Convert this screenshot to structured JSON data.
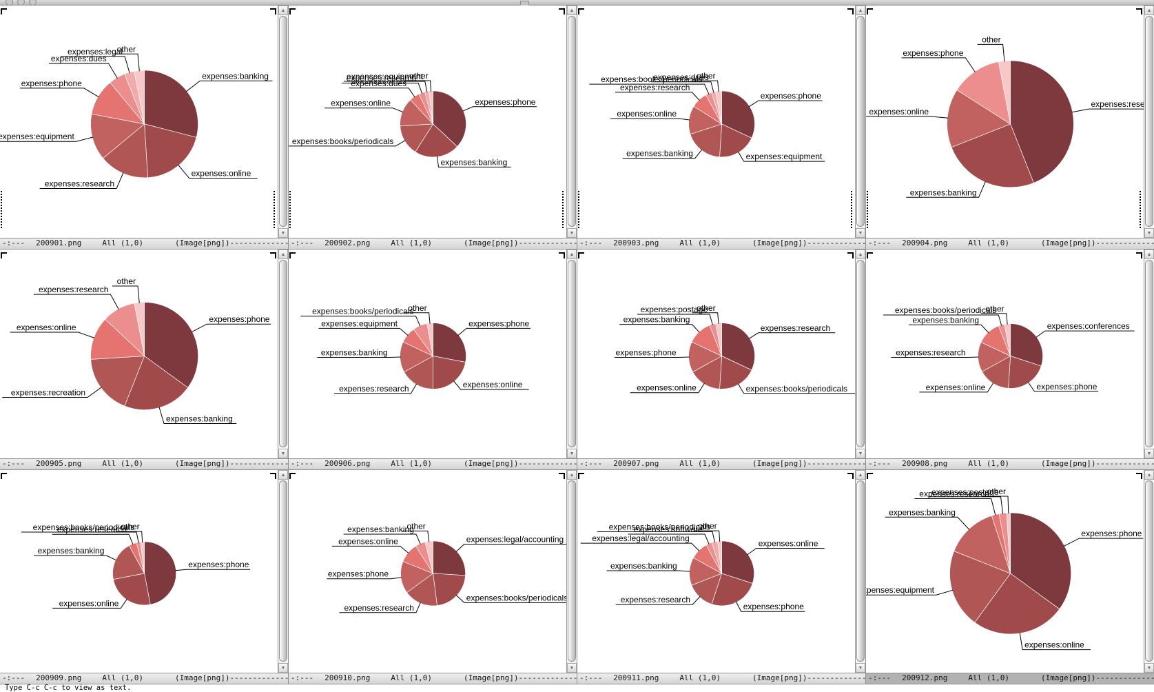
{
  "minibuffer": {
    "text": "Type C-c C-c to view as text."
  },
  "modeline": {
    "prefix": "-:---",
    "position": "All (1,0)",
    "mode": "(Image[png])",
    "dashes": "--------------------------------------------------------------------------------"
  },
  "icons": {
    "scroll_up": "▲",
    "scroll_down": "▼"
  },
  "palette": [
    "#7d393d",
    "#a14a4b",
    "#b05755",
    "#c26260",
    "#e5736f",
    "#ec8e8d",
    "#f2abaa",
    "#f8c7c7"
  ],
  "chart_data": [
    {
      "file": "200901.png",
      "type": "pie",
      "radius": 78,
      "active": false,
      "labels": [
        "expenses:banking",
        "expenses:online",
        "expenses:research",
        "expenses:equipment",
        "expenses:phone",
        "expenses:dues",
        "expenses:legal",
        "other"
      ],
      "values": [
        29,
        20,
        15,
        14,
        11,
        5,
        3,
        3
      ]
    },
    {
      "file": "200902.png",
      "type": "pie",
      "radius": 48,
      "active": false,
      "labels": [
        "expenses:phone",
        "expenses:banking",
        "expenses:books/periodicals",
        "expenses:online",
        "expenses:dues",
        "expenses:research",
        "expenses:equipment",
        "other"
      ],
      "values": [
        37,
        22,
        15,
        14,
        5,
        3,
        2,
        2
      ]
    },
    {
      "file": "200903.png",
      "type": "pie",
      "radius": 48,
      "active": false,
      "labels": [
        "expenses:phone",
        "expenses:equipment",
        "expenses:banking",
        "expenses:online",
        "expenses:research",
        "expenses:books/periodicals",
        "expenses:dues",
        "other"
      ],
      "values": [
        32,
        19,
        19,
        14,
        8,
        3,
        2,
        3
      ]
    },
    {
      "file": "200904.png",
      "type": "pie",
      "radius": 92,
      "active": false,
      "labels": [
        "expenses:research",
        "expenses:banking",
        "expenses:online",
        "expenses:phone",
        "other"
      ],
      "values": [
        44,
        25,
        15,
        13,
        3
      ]
    },
    {
      "file": "200905.png",
      "type": "pie",
      "radius": 78,
      "active": false,
      "labels": [
        "expenses:phone",
        "expenses:banking",
        "expenses:recreation",
        "expenses:online",
        "expenses:research",
        "other"
      ],
      "values": [
        35,
        21,
        18,
        13,
        10,
        3
      ]
    },
    {
      "file": "200906.png",
      "type": "pie",
      "radius": 48,
      "active": false,
      "labels": [
        "expenses:phone",
        "expenses:online",
        "expenses:research",
        "expenses:banking",
        "expenses:equipment",
        "expenses:books/periodicals",
        "other"
      ],
      "values": [
        28,
        22,
        17,
        15,
        8,
        7,
        3
      ]
    },
    {
      "file": "200907.png",
      "type": "pie",
      "radius": 48,
      "active": false,
      "labels": [
        "expenses:research",
        "expenses:books/periodicals",
        "expenses:online",
        "expenses:phone",
        "expenses:banking",
        "expenses:postage",
        "other"
      ],
      "values": [
        32,
        19,
        16,
        15,
        12,
        3,
        3
      ]
    },
    {
      "file": "200908.png",
      "type": "pie",
      "radius": 47,
      "active": false,
      "labels": [
        "expenses:conferences",
        "expenses:phone",
        "expenses:online",
        "expenses:research",
        "expenses:banking",
        "expenses:books/periodicals",
        "other"
      ],
      "values": [
        30,
        21,
        16,
        15,
        12,
        3,
        3
      ]
    },
    {
      "file": "200909.png",
      "type": "pie",
      "radius": 46,
      "active": false,
      "labels": [
        "expenses:phone",
        "expenses:online",
        "expenses:banking",
        "expenses:research",
        "expenses:books/periodicals",
        "other"
      ],
      "values": [
        47,
        25,
        20,
        4,
        2,
        2
      ]
    },
    {
      "file": "200910.png",
      "type": "pie",
      "radius": 47,
      "active": false,
      "labels": [
        "expenses:legal/accounting",
        "expenses:books/periodicals",
        "expenses:research",
        "expenses:phone",
        "expenses:online",
        "expenses:banking",
        "other"
      ],
      "values": [
        26,
        22,
        17,
        16,
        10,
        5,
        4
      ]
    },
    {
      "file": "200911.png",
      "type": "pie",
      "radius": 47,
      "active": false,
      "labels": [
        "expenses:online",
        "expenses:phone",
        "expenses:research",
        "expenses:banking",
        "expenses:legal/accounting",
        "expenses:software",
        "expenses:books/periodicals",
        "other"
      ],
      "values": [
        30,
        25,
        14,
        14,
        9,
        3,
        3,
        2
      ]
    },
    {
      "file": "200912.png",
      "type": "pie",
      "radius": 88,
      "active": true,
      "labels": [
        "expenses:phone",
        "expenses:online",
        "expenses:equipment",
        "expenses:banking",
        "expenses:research",
        "expenses:postage",
        "other"
      ],
      "values": [
        35,
        25,
        21,
        14,
        2,
        2,
        1
      ]
    }
  ]
}
